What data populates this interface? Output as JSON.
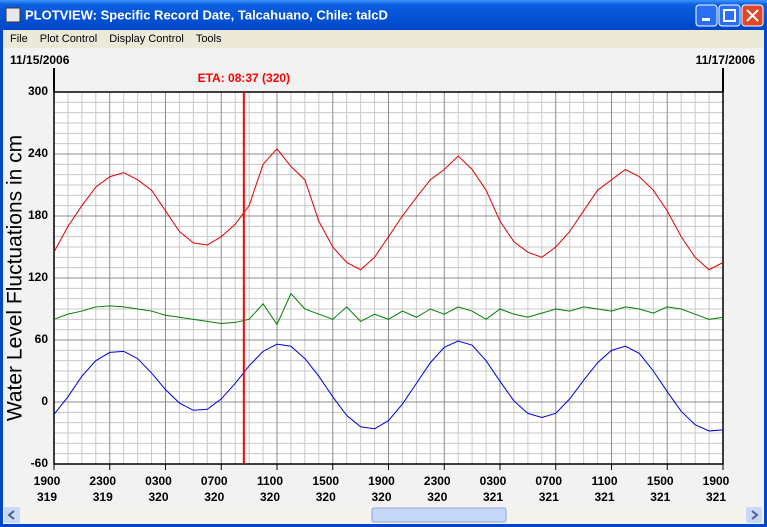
{
  "window": {
    "title": "PLOTVIEW: Specific Record Date, Talcahuano, Chile: talcD"
  },
  "menu": [
    "File",
    "Plot Control",
    "Display Control",
    "Tools"
  ],
  "chart_data": {
    "type": "line",
    "start_date": "11/15/2006",
    "end_date": "11/17/2006",
    "ylabel": "Water Level Fluctuations in cm",
    "annotation": {
      "text": "ETA: 08:37 (320)",
      "x": 13.62,
      "color": "#ff0000"
    },
    "x": [
      0,
      1,
      2,
      3,
      4,
      5,
      6,
      7,
      8,
      9,
      10,
      11,
      12,
      13,
      14,
      15,
      16,
      17,
      18,
      19,
      20,
      21,
      22,
      23,
      24,
      25,
      26,
      27,
      28,
      29,
      30,
      31,
      32,
      33,
      34,
      35,
      36,
      37,
      38,
      39,
      40,
      41,
      42,
      43,
      44,
      45,
      46,
      47,
      48
    ],
    "xlim": [
      0,
      48
    ],
    "xticks": [
      {
        "value": 0,
        "label": "1900"
      },
      {
        "value": 4,
        "label": "2300"
      },
      {
        "value": 8,
        "label": "0300"
      },
      {
        "value": 12,
        "label": "0700"
      },
      {
        "value": 16,
        "label": "1100"
      },
      {
        "value": 20,
        "label": "1500"
      },
      {
        "value": 24,
        "label": "1900"
      },
      {
        "value": 28,
        "label": "2300"
      },
      {
        "value": 32,
        "label": "0300"
      },
      {
        "value": 36,
        "label": "0700"
      },
      {
        "value": 40,
        "label": "1100"
      },
      {
        "value": 44,
        "label": "1500"
      },
      {
        "value": 48,
        "label": "1900"
      }
    ],
    "xtick_days": [
      "319",
      "319",
      "320",
      "320",
      "320",
      "320",
      "320",
      "320",
      "321",
      "321",
      "321",
      "321",
      "321"
    ],
    "ylim": [
      -60,
      300
    ],
    "yticks": [
      -60,
      0,
      60,
      120,
      180,
      240,
      300
    ],
    "grid": true,
    "series": [
      {
        "color": "#e00000",
        "values": [
          145,
          170,
          190,
          208,
          218,
          222,
          215,
          205,
          185,
          165,
          154,
          152,
          160,
          172,
          190,
          230,
          245,
          228,
          215,
          175,
          150,
          135,
          128,
          140,
          160,
          180,
          198,
          215,
          225,
          238,
          225,
          205,
          175,
          155,
          145,
          140,
          150,
          165,
          185,
          205,
          215,
          225,
          218,
          205,
          185,
          160,
          140,
          128,
          135
        ]
      },
      {
        "color": "#008000",
        "values": [
          80,
          85,
          88,
          92,
          93,
          92,
          90,
          88,
          84,
          82,
          80,
          78,
          76,
          77,
          80,
          95,
          75,
          105,
          90,
          85,
          80,
          92,
          78,
          85,
          80,
          88,
          82,
          90,
          85,
          92,
          88,
          80,
          90,
          85,
          82,
          86,
          90,
          88,
          92,
          90,
          88,
          92,
          90,
          86,
          92,
          90,
          85,
          80,
          82
        ]
      },
      {
        "color": "#0000e0",
        "values": [
          -12,
          5,
          25,
          40,
          48,
          49,
          42,
          28,
          12,
          -1,
          -8,
          -7,
          3,
          18,
          35,
          49,
          56,
          54,
          42,
          25,
          5,
          -13,
          -24,
          -26,
          -18,
          -2,
          18,
          38,
          53,
          59,
          55,
          40,
          20,
          1,
          -11,
          -15,
          -11,
          3,
          21,
          38,
          50,
          54,
          47,
          30,
          10,
          -9,
          -22,
          -28,
          -27
        ]
      }
    ]
  }
}
